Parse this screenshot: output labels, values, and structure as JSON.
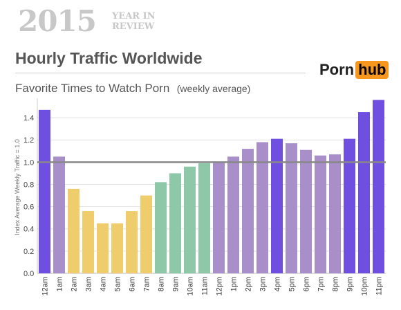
{
  "header": {
    "year": "2015",
    "year_tag_line1": "YEAR IN",
    "year_tag_line2": "REVIEW",
    "title": "Hourly Traffic Worldwide",
    "subtitle": "Favorite Times to Watch Porn",
    "subtitle_note": "(weekly average)",
    "logo_part1": "Porn",
    "logo_part2": "hub"
  },
  "colors": {
    "night": "#6f4fe0",
    "lavender": "#a98fca",
    "yellow": "#efcc6c",
    "green": "#8fc8a8",
    "reference_line": "#888888",
    "logo_accent": "#f7971d"
  },
  "chart_data": {
    "type": "bar",
    "title": "Favorite Times to Watch Porn",
    "ylabel": "Index Average Weekly Traffic = 1.0",
    "xlabel": "",
    "ylim": [
      0,
      1.55
    ],
    "yticks": [
      "0.0",
      "0.2",
      "0.4",
      "0.6",
      "0.8",
      "1.0",
      "1.2",
      "1.4"
    ],
    "reference_line": 1.0,
    "grid": true,
    "categories": [
      "12am",
      "1am",
      "2am",
      "3am",
      "4am",
      "5am",
      "6am",
      "7am",
      "8am",
      "9am",
      "10am",
      "11am",
      "12pm",
      "1pm",
      "2pm",
      "3pm",
      "4pm",
      "5pm",
      "6pm",
      "7pm",
      "8pm",
      "9pm",
      "10pm",
      "11pm"
    ],
    "values": [
      1.47,
      1.05,
      0.76,
      0.56,
      0.45,
      0.45,
      0.56,
      0.7,
      0.82,
      0.9,
      0.96,
      0.99,
      1.0,
      1.05,
      1.12,
      1.18,
      1.21,
      1.17,
      1.11,
      1.06,
      1.07,
      1.21,
      1.45,
      1.56
    ],
    "bar_color_keys": [
      "night",
      "lavender",
      "yellow",
      "yellow",
      "yellow",
      "yellow",
      "yellow",
      "yellow",
      "green",
      "green",
      "green",
      "green",
      "lavender",
      "lavender",
      "lavender",
      "lavender",
      "night",
      "lavender",
      "lavender",
      "lavender",
      "lavender",
      "night",
      "night",
      "night"
    ]
  }
}
